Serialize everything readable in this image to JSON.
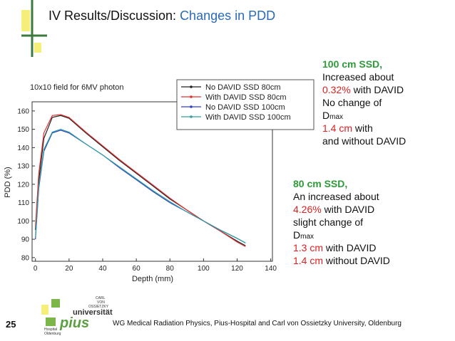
{
  "slide": {
    "title": [
      "IV  Results/Discussion: ",
      "Changes in PDD"
    ],
    "note_100": {
      "heading": "100 cm SSD,",
      "lines": [
        "Increased about",
        [
          "0.32%",
          " with DAVID"
        ],
        "No change of",
        [
          "D",
          "max"
        ],
        [
          "1.4 cm",
          " with"
        ],
        "and without DAVID"
      ]
    },
    "note_80": {
      "heading": "80 cm SSD,",
      "lines": [
        "An increased about",
        [
          "4.26%",
          " with DAVID"
        ],
        "slight change of",
        [
          "D",
          "max"
        ],
        [
          "1.3 cm",
          " with DAVID"
        ],
        [
          "1.4 cm",
          " without DAVID"
        ]
      ]
    },
    "page_number": "25",
    "footer": "WG  Medical Radiation Physics, Pius-Hospital and Carl von Ossietzky University, Oldenburg",
    "logo": {
      "carl": "CARL",
      "von": "VON",
      "ossietzky": "OSSIETZKY",
      "universitat": "universität",
      "pius": "pius",
      "hospital": "Hospital",
      "city": "Oldenburg"
    }
  },
  "chart_data": {
    "type": "line",
    "title": "10x10 field for 6MV photon",
    "x_label": "Depth (mm)",
    "y_label": "PDD (%)",
    "x": [
      0,
      2,
      5,
      10,
      15,
      20,
      30,
      40,
      50,
      60,
      70,
      80,
      90,
      100,
      110,
      120,
      125
    ],
    "series": [
      {
        "name": "No DAVID SSD 80cm",
        "color": "#222222",
        "values": [
          95,
          122,
          145,
          156.5,
          157.5,
          156,
          148,
          140.5,
          133,
          126,
          119,
          112,
          106,
          100,
          94.5,
          89,
          86.5
        ]
      },
      {
        "name": "With DAVID SSD 80cm",
        "color": "#e03030",
        "values": [
          97,
          126,
          148,
          157.5,
          158,
          156.5,
          148.5,
          141,
          133.5,
          126.5,
          119.5,
          112.5,
          106,
          100,
          94.5,
          88.5,
          86
        ]
      },
      {
        "name": "No DAVID SSD 100cm",
        "color": "#3040c0",
        "values": [
          90,
          118,
          138,
          148,
          149.5,
          148,
          142,
          136,
          129,
          122.5,
          116,
          110,
          105,
          100,
          95,
          90.5,
          88
        ]
      },
      {
        "name": "With DAVID SSD 100cm",
        "color": "#30a0a0",
        "values": [
          91,
          119,
          139,
          148.5,
          150,
          148.5,
          142,
          136,
          129.5,
          123,
          116.5,
          110.5,
          105,
          100,
          95,
          90.5,
          88
        ]
      }
    ],
    "xlim": [
      -2,
      141
    ],
    "ylim": [
      78,
      165
    ],
    "xticks": [
      0,
      20,
      40,
      60,
      80,
      100,
      120,
      140
    ],
    "yticks": [
      80,
      90,
      100,
      110,
      120,
      130,
      140,
      150,
      160
    ],
    "legend": "upper right"
  }
}
